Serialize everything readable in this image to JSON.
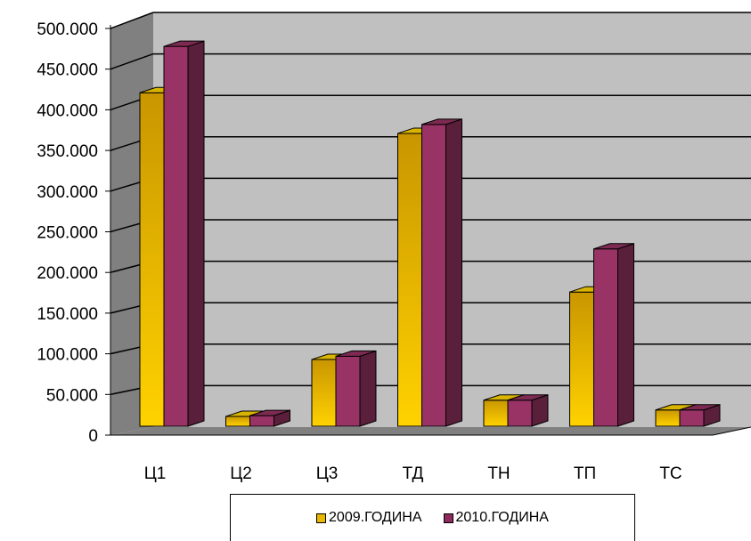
{
  "chart_data": {
    "type": "bar",
    "categories": [
      "Ц1",
      "Ц2",
      "Ц3",
      "ТД",
      "ТН",
      "ТП",
      "ТС"
    ],
    "series": [
      {
        "name": "2009.ГОДИНА",
        "values": [
          410000,
          12000,
          82000,
          360000,
          32000,
          165000,
          20000
        ],
        "color": "#e8b800"
      },
      {
        "name": "2010.ГОДИНА",
        "values": [
          467000,
          13000,
          86000,
          371000,
          32000,
          218000,
          20000
        ],
        "color": "#8e2a5c"
      }
    ],
    "y_ticks": [
      "0",
      "50.000",
      "100.000",
      "150.000",
      "200.000",
      "250.000",
      "300.000",
      "350.000",
      "400.000",
      "450.000",
      "500.000"
    ],
    "ylim": [
      0,
      500000
    ],
    "grid": true,
    "legend_position": "bottom",
    "title": "",
    "xlabel": "",
    "ylabel": ""
  }
}
